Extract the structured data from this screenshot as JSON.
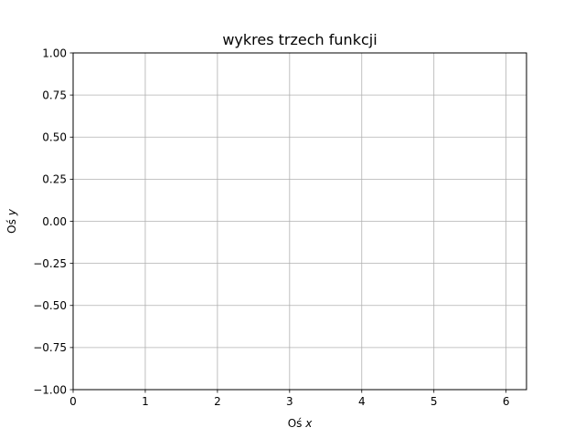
{
  "chart_data": {
    "type": "line",
    "title": "wykres trzech funkcji",
    "xlabel": {
      "prefix": "Oś ",
      "var": "x"
    },
    "ylabel": {
      "prefix": "Oś ",
      "var": "y"
    },
    "xlim": [
      0,
      6.283
    ],
    "ylim": [
      -1.0,
      1.0
    ],
    "x_ticks": [
      0,
      1,
      2,
      3,
      4,
      5,
      6
    ],
    "x_tick_labels": [
      "0",
      "1",
      "2",
      "3",
      "4",
      "5",
      "6"
    ],
    "y_ticks": [
      1.0,
      0.75,
      0.5,
      0.25,
      0.0,
      -0.25,
      -0.5,
      -0.75,
      -1.0
    ],
    "y_tick_labels": [
      "1.00",
      "0.75",
      "0.50",
      "0.25",
      "0.00",
      "−0.25",
      "−0.50",
      "−0.75",
      "−1.00"
    ],
    "grid": true,
    "series": [],
    "colors": {
      "grid": "#b0b0b0",
      "axes": "#000000",
      "background": "#ffffff"
    }
  }
}
